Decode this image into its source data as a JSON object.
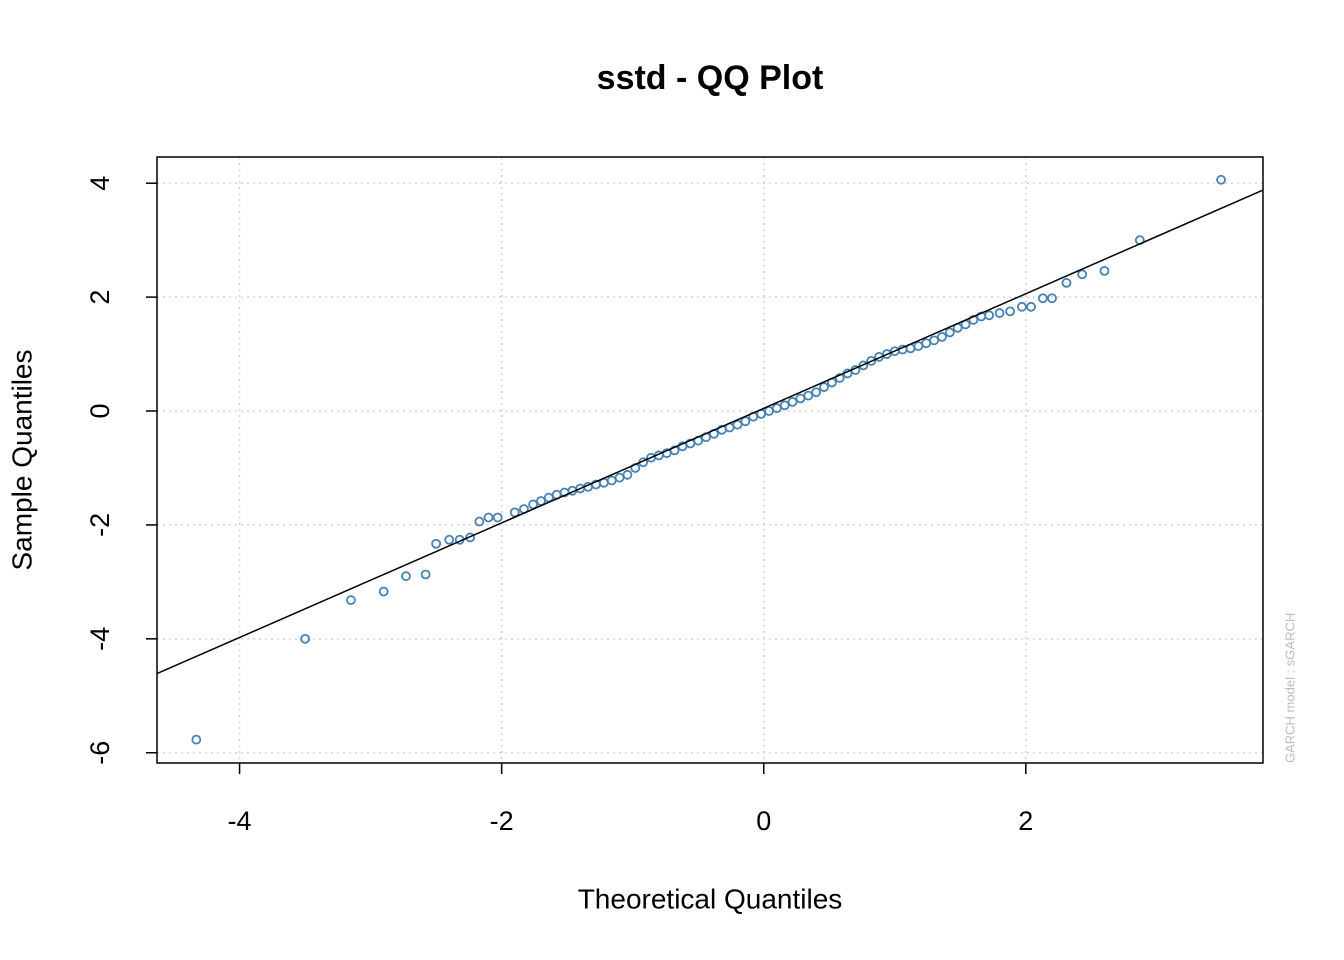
{
  "chart_data": {
    "type": "scatter",
    "title": "sstd - QQ Plot",
    "x_label": "Theoretical Quantiles",
    "y_label": "Sample Quantiles",
    "annotation": "GARCH model :  sGARCH",
    "color": "#4682b4",
    "grid": true,
    "xlim": [
      -4.63,
      3.81
    ],
    "ylim": [
      -6.18,
      4.46
    ],
    "xticks": [
      -4,
      -2,
      0,
      2
    ],
    "yticks": [
      -6,
      -4,
      -2,
      0,
      2,
      4
    ],
    "reference_line": {
      "x": [
        -4.63,
        3.81
      ],
      "y": [
        -4.61,
        3.88
      ]
    },
    "x": [
      -4.33,
      -3.5,
      -3.15,
      -2.9,
      -2.73,
      -2.58,
      -2.5,
      -2.4,
      -2.32,
      -2.24,
      -2.17,
      -2.1,
      -2.03,
      -1.9,
      -1.83,
      -1.76,
      -1.7,
      -1.64,
      -1.58,
      -1.52,
      -1.46,
      -1.4,
      -1.34,
      -1.28,
      -1.22,
      -1.16,
      -1.1,
      -1.04,
      -0.98,
      -0.92,
      -0.86,
      -0.8,
      -0.74,
      -0.68,
      -0.62,
      -0.56,
      -0.5,
      -0.44,
      -0.38,
      -0.32,
      -0.26,
      -0.2,
      -0.14,
      -0.08,
      -0.02,
      0.04,
      0.1,
      0.16,
      0.22,
      0.28,
      0.34,
      0.4,
      0.46,
      0.52,
      0.58,
      0.64,
      0.7,
      0.76,
      0.82,
      0.88,
      0.94,
      1.0,
      1.06,
      1.12,
      1.18,
      1.24,
      1.3,
      1.36,
      1.42,
      1.48,
      1.54,
      1.6,
      1.66,
      1.72,
      1.8,
      1.88,
      1.97,
      2.04,
      2.13,
      2.2,
      2.31,
      2.43,
      2.6,
      2.87,
      3.49
    ],
    "y": [
      -5.77,
      -4.0,
      -3.32,
      -3.17,
      -2.9,
      -2.87,
      -2.33,
      -2.26,
      -2.26,
      -2.22,
      -1.94,
      -1.87,
      -1.87,
      -1.78,
      -1.72,
      -1.64,
      -1.58,
      -1.52,
      -1.47,
      -1.43,
      -1.4,
      -1.36,
      -1.33,
      -1.29,
      -1.26,
      -1.22,
      -1.17,
      -1.12,
      -1.0,
      -0.9,
      -0.82,
      -0.78,
      -0.74,
      -0.69,
      -0.62,
      -0.57,
      -0.52,
      -0.46,
      -0.4,
      -0.33,
      -0.29,
      -0.24,
      -0.18,
      -0.1,
      -0.05,
      0.0,
      0.05,
      0.1,
      0.16,
      0.22,
      0.27,
      0.33,
      0.42,
      0.5,
      0.58,
      0.66,
      0.72,
      0.8,
      0.88,
      0.95,
      1.0,
      1.05,
      1.08,
      1.1,
      1.14,
      1.19,
      1.24,
      1.3,
      1.38,
      1.46,
      1.52,
      1.6,
      1.66,
      1.68,
      1.72,
      1.75,
      1.83,
      1.83,
      1.98,
      1.98,
      2.25,
      2.4,
      2.46,
      3.0,
      4.06
    ]
  }
}
